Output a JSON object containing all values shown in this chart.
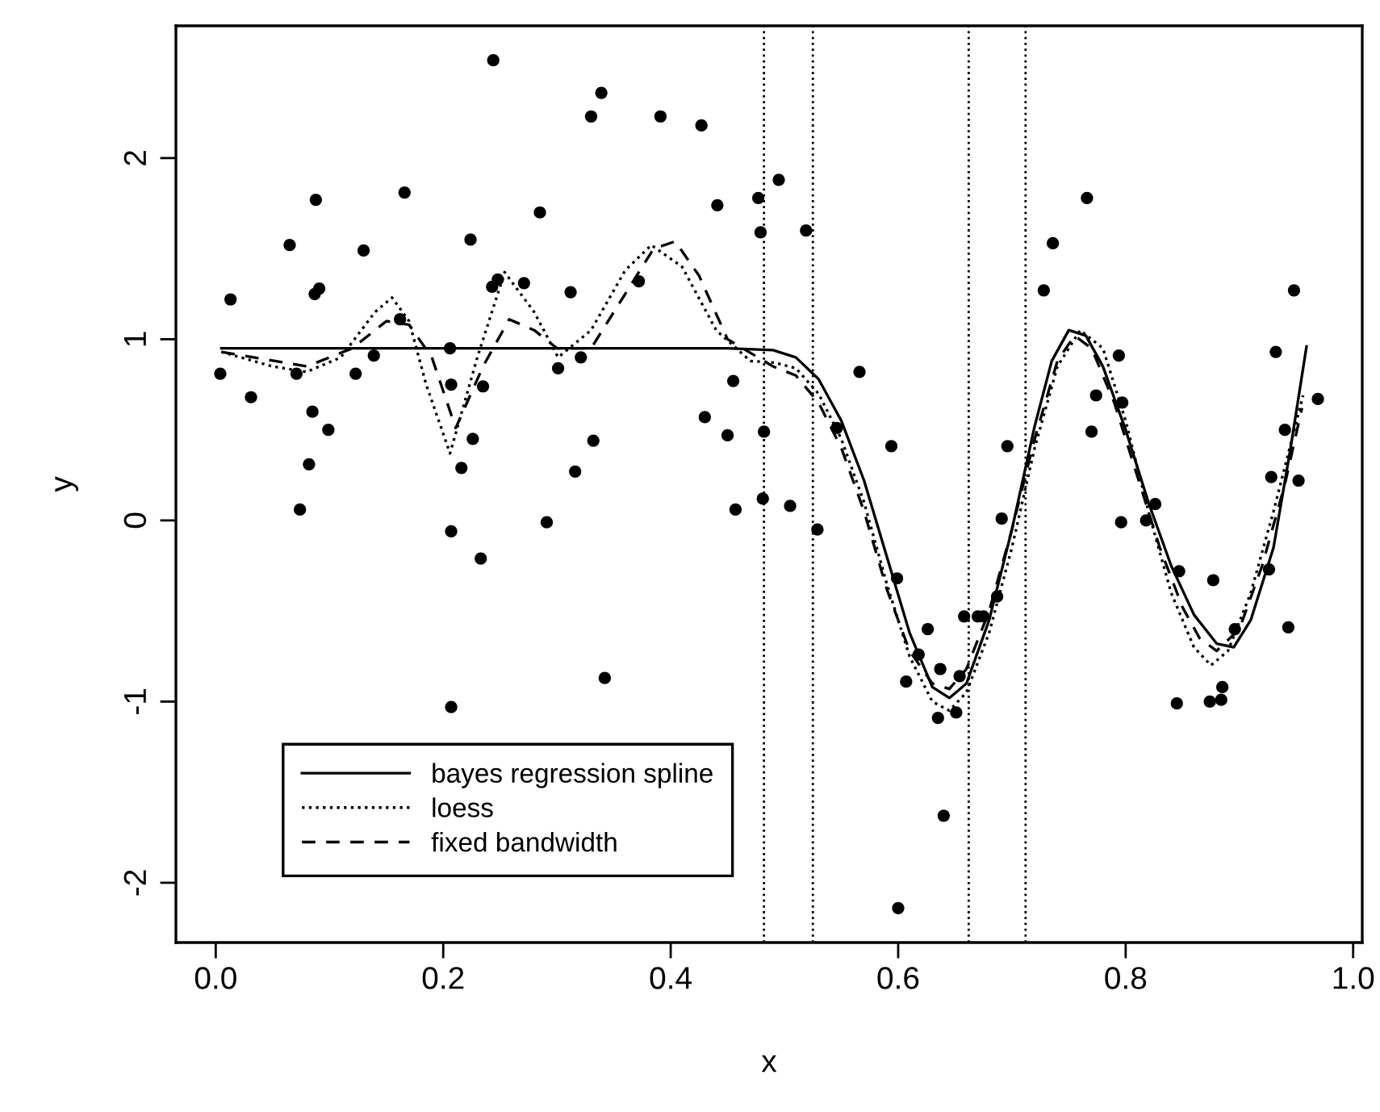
{
  "chart_data": {
    "type": "scatter",
    "xlabel": "x",
    "ylabel": "y",
    "xlim": [
      -0.035,
      1.008
    ],
    "ylim": [
      -2.33,
      2.73
    ],
    "xticks": [
      {
        "value": 0,
        "label": "0.0"
      },
      {
        "value": 0.2,
        "label": "0.2"
      },
      {
        "value": 0.4,
        "label": "0.4"
      },
      {
        "value": 0.6,
        "label": "0.6"
      },
      {
        "value": 0.8,
        "label": "0.8"
      },
      {
        "value": 1,
        "label": "1.0"
      }
    ],
    "yticks": [
      {
        "value": -2,
        "label": "-2"
      },
      {
        "value": -1,
        "label": "-1"
      },
      0,
      1,
      2
    ],
    "grid": false,
    "legend": "bottom left",
    "ref_lines": [
      {
        "axis": "x",
        "value": 0.482,
        "color": "#000000",
        "line_style": "dotted"
      },
      {
        "axis": "x",
        "value": 0.525,
        "color": "#000000",
        "line_style": "dotted"
      },
      {
        "axis": "x",
        "value": 0.662,
        "color": "#000000",
        "line_style": "dotted"
      },
      {
        "axis": "x",
        "value": 0.712,
        "color": "#000000",
        "line_style": "dotted"
      }
    ],
    "series": [
      {
        "color": "#000000",
        "marker": "circle",
        "x": [
          0.004,
          0.013,
          0.031,
          0.065,
          0.088,
          0.087,
          0.091,
          0.071,
          0.085,
          0.099,
          0.082,
          0.074,
          0.13,
          0.123,
          0.139,
          0.166,
          0.162,
          0.206,
          0.207,
          0.244,
          0.224,
          0.243,
          0.248,
          0.235,
          0.226,
          0.216,
          0.271,
          0.285,
          0.312,
          0.301,
          0.316,
          0.207,
          0.233,
          0.291,
          0.207,
          0.339,
          0.33,
          0.391,
          0.427,
          0.441,
          0.477,
          0.495,
          0.479,
          0.519,
          0.372,
          0.321,
          0.455,
          0.566,
          0.43,
          0.45,
          0.482,
          0.332,
          0.546,
          0.594,
          0.481,
          0.457,
          0.505,
          0.529,
          0.342,
          0.599,
          0.626,
          0.618,
          0.607,
          0.637,
          0.658,
          0.654,
          0.635,
          0.651,
          0.64,
          0.6,
          0.67,
          0.675,
          0.687,
          0.691,
          0.796,
          0.818,
          0.826,
          0.847,
          0.877,
          0.896,
          0.943,
          0.926,
          0.845,
          0.874,
          0.884,
          0.885,
          0.766,
          0.736,
          0.728,
          0.794,
          0.774,
          0.797,
          0.77,
          0.696,
          0.948,
          0.932,
          0.969,
          0.94,
          0.928,
          0.952
        ],
        "values": [
          0.81,
          1.22,
          0.68,
          1.52,
          1.77,
          1.25,
          1.28,
          0.81,
          0.6,
          0.5,
          0.31,
          0.06,
          1.49,
          0.81,
          0.91,
          1.81,
          1.11,
          0.95,
          0.75,
          2.54,
          1.55,
          1.29,
          1.33,
          0.74,
          0.45,
          0.29,
          1.31,
          1.7,
          1.26,
          0.84,
          0.27,
          -0.06,
          -0.21,
          -0.01,
          -1.03,
          2.36,
          2.23,
          2.23,
          2.18,
          1.74,
          1.78,
          1.88,
          1.59,
          1.6,
          1.32,
          0.9,
          0.77,
          0.82,
          0.57,
          0.47,
          0.49,
          0.44,
          0.51,
          0.41,
          0.12,
          0.06,
          0.08,
          -0.05,
          -0.87,
          -0.32,
          -0.6,
          -0.74,
          -0.89,
          -0.82,
          -0.53,
          -0.86,
          -1.09,
          -1.06,
          -1.63,
          -2.14,
          -0.53,
          -0.53,
          -0.42,
          0.01,
          -0.01,
          0.0,
          0.09,
          -0.28,
          -0.33,
          -0.6,
          -0.59,
          -0.27,
          -1.01,
          -1.0,
          -0.99,
          -0.92,
          1.78,
          1.53,
          1.27,
          0.91,
          0.69,
          0.65,
          0.49,
          0.41,
          1.27,
          0.93,
          0.67,
          0.5,
          0.24,
          0.22
        ]
      },
      {
        "type": "line",
        "name": "bayes regression spline",
        "color": "#000000",
        "line_style": "solid",
        "x": [
          0.005,
          0.45,
          0.49,
          0.51,
          0.53,
          0.55,
          0.57,
          0.59,
          0.61,
          0.63,
          0.645,
          0.66,
          0.68,
          0.7,
          0.72,
          0.735,
          0.75,
          0.765,
          0.78,
          0.8,
          0.82,
          0.84,
          0.86,
          0.88,
          0.895,
          0.91,
          0.93,
          0.945,
          0.959
        ],
        "values": [
          0.95,
          0.95,
          0.94,
          0.9,
          0.78,
          0.55,
          0.22,
          -0.2,
          -0.62,
          -0.92,
          -0.98,
          -0.9,
          -0.55,
          -0.05,
          0.52,
          0.88,
          1.05,
          1.02,
          0.85,
          0.5,
          0.1,
          -0.25,
          -0.52,
          -0.68,
          -0.7,
          -0.55,
          -0.15,
          0.4,
          0.96
        ]
      },
      {
        "type": "line",
        "name": "loess",
        "color": "#000000",
        "line_style": "dotted",
        "x": [
          0.005,
          0.05,
          0.08,
          0.11,
          0.14,
          0.155,
          0.17,
          0.185,
          0.206,
          0.23,
          0.254,
          0.28,
          0.301,
          0.33,
          0.36,
          0.383,
          0.41,
          0.44,
          0.47,
          0.492,
          0.51,
          0.53,
          0.55,
          0.57,
          0.59,
          0.61,
          0.63,
          0.645,
          0.66,
          0.68,
          0.7,
          0.72,
          0.74,
          0.76,
          0.78,
          0.8,
          0.82,
          0.84,
          0.86,
          0.875,
          0.89,
          0.91,
          0.93,
          0.956
        ],
        "values": [
          0.93,
          0.85,
          0.82,
          0.9,
          1.15,
          1.23,
          1.1,
          0.75,
          0.37,
          0.9,
          1.37,
          1.15,
          0.9,
          1.05,
          1.38,
          1.52,
          1.4,
          1.05,
          0.88,
          0.87,
          0.84,
          0.7,
          0.45,
          0.1,
          -0.35,
          -0.75,
          -1.0,
          -1.05,
          -0.95,
          -0.62,
          -0.15,
          0.4,
          0.85,
          1.05,
          0.95,
          0.55,
          0.05,
          -0.4,
          -0.7,
          -0.8,
          -0.72,
          -0.4,
          0.05,
          0.69
        ]
      },
      {
        "type": "line",
        "name": "fixed bandwidth",
        "color": "#000000",
        "line_style": "dashed",
        "x": [
          0.005,
          0.08,
          0.12,
          0.15,
          0.17,
          0.19,
          0.211,
          0.235,
          0.258,
          0.28,
          0.3,
          0.33,
          0.36,
          0.385,
          0.404,
          0.425,
          0.45,
          0.49,
          0.51,
          0.53,
          0.55,
          0.57,
          0.59,
          0.61,
          0.63,
          0.645,
          0.66,
          0.68,
          0.7,
          0.72,
          0.74,
          0.755,
          0.77,
          0.79,
          0.81,
          0.83,
          0.85,
          0.865,
          0.88,
          0.9,
          0.92,
          0.94,
          0.955
        ],
        "values": [
          0.93,
          0.85,
          0.95,
          1.1,
          1.08,
          0.9,
          0.51,
          0.85,
          1.11,
          1.05,
          0.95,
          0.95,
          1.25,
          1.5,
          1.54,
          1.35,
          1.0,
          0.85,
          0.8,
          0.65,
          0.4,
          0.05,
          -0.38,
          -0.72,
          -0.9,
          -0.93,
          -0.82,
          -0.5,
          -0.05,
          0.45,
          0.88,
          1.02,
          0.95,
          0.65,
          0.25,
          -0.15,
          -0.48,
          -0.65,
          -0.72,
          -0.6,
          -0.25,
          0.2,
          0.62
        ]
      }
    ]
  }
}
